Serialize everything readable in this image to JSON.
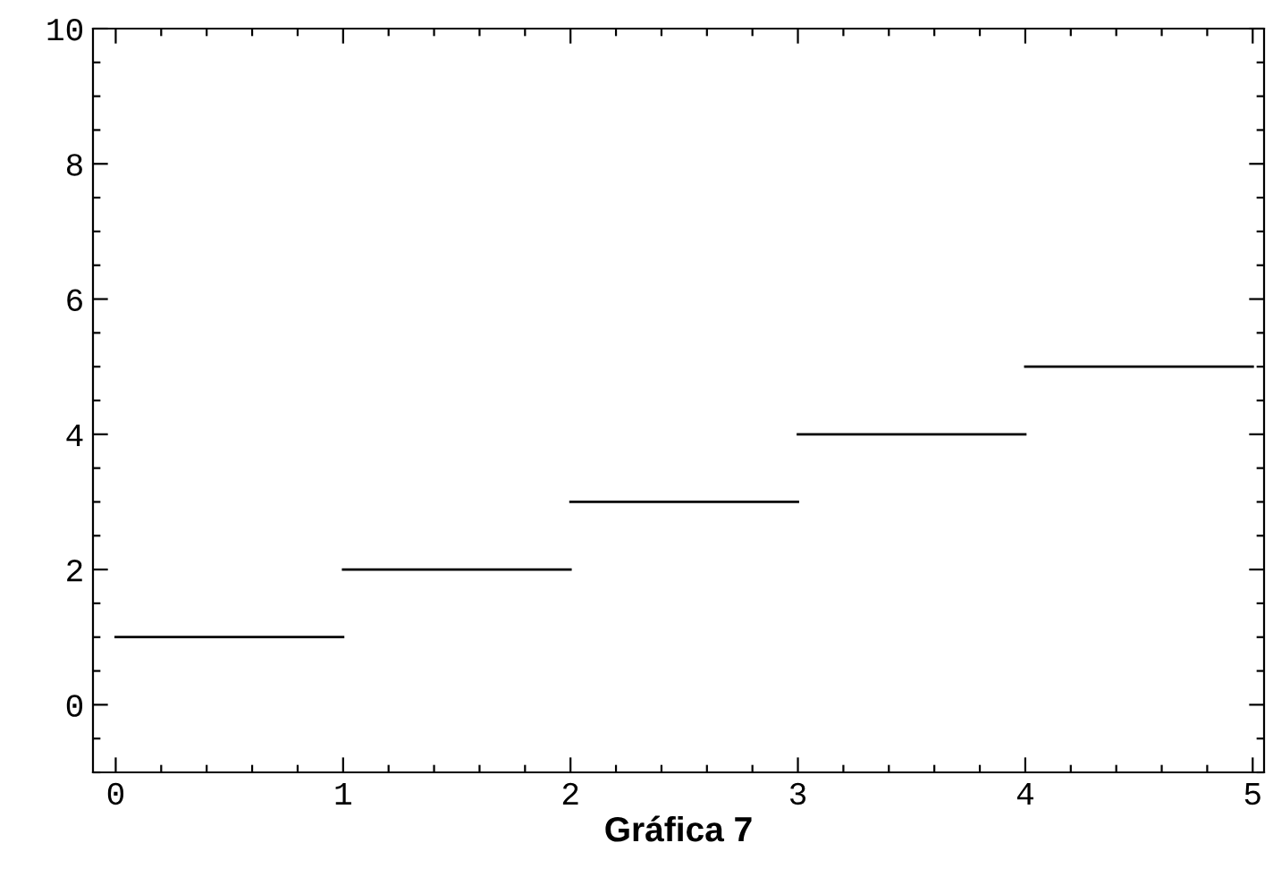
{
  "chart_data": {
    "type": "line",
    "xlabel": "Gráfica 7",
    "series": [
      {
        "color": "#000000",
        "x": [
          0,
          1
        ],
        "values": [
          1,
          1
        ]
      },
      {
        "color": "#000000",
        "x": [
          1,
          2
        ],
        "values": [
          2,
          2
        ]
      },
      {
        "color": "#000000",
        "x": [
          2,
          3
        ],
        "values": [
          3,
          3
        ]
      },
      {
        "color": "#000000",
        "x": [
          3,
          4
        ],
        "values": [
          4,
          4
        ]
      },
      {
        "color": "#000000",
        "x": [
          4,
          5
        ],
        "values": [
          5,
          5
        ]
      }
    ],
    "xlim": [
      -0.1,
      5.05
    ],
    "ylim": [
      -1,
      10
    ],
    "xticks": [
      0,
      1,
      2,
      3,
      4,
      5
    ],
    "yticks": [
      0,
      2,
      4,
      6,
      8,
      10
    ],
    "grid": false,
    "legend": false,
    "marker": "none",
    "line_style": "solid"
  }
}
